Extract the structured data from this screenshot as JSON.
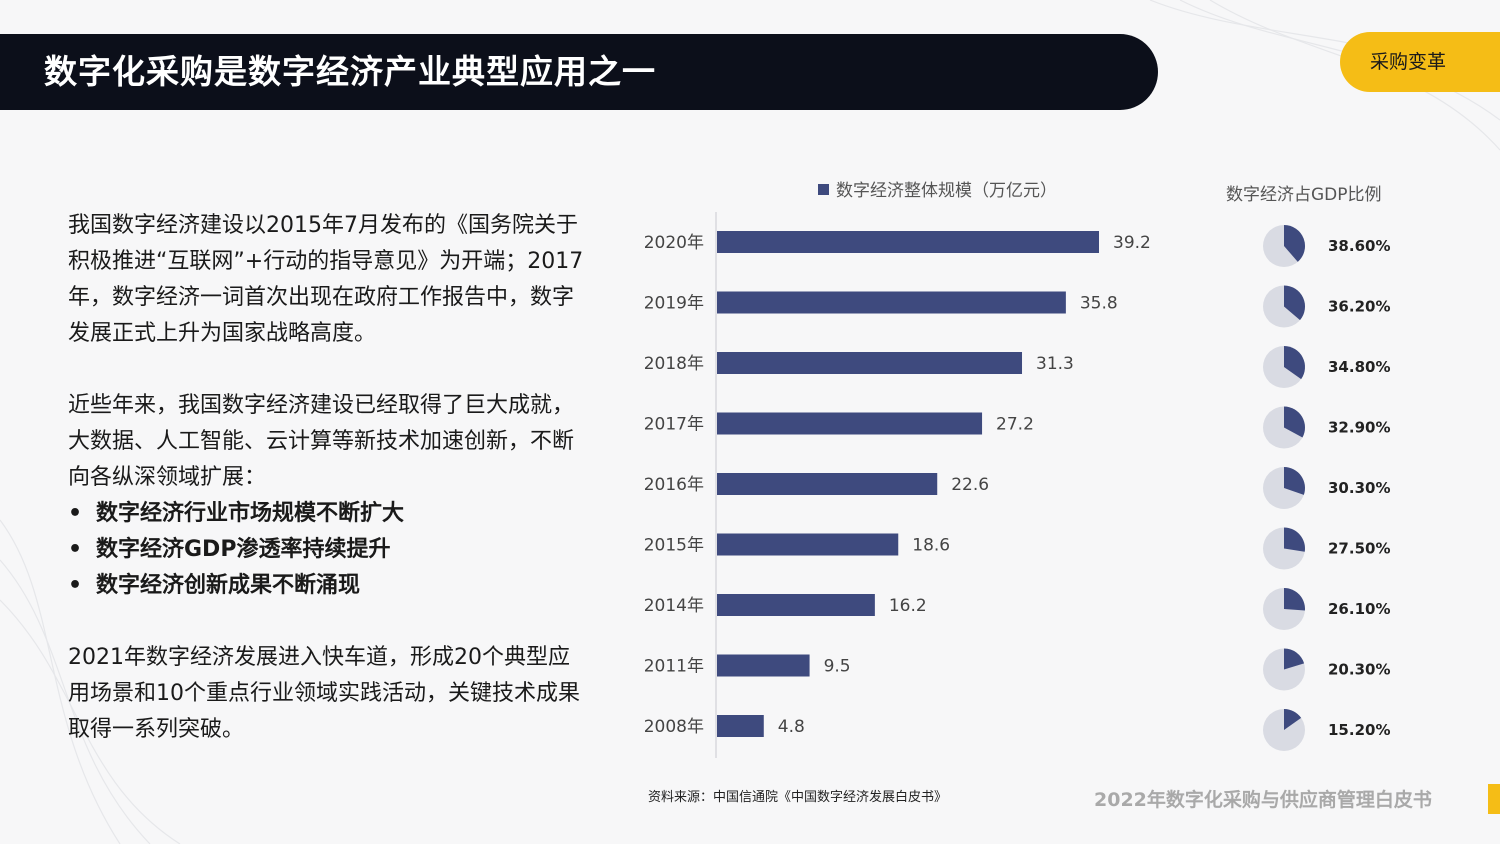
{
  "header": {
    "title": "数字化采购是数字经济产业典型应用之一",
    "tag": "采购变革"
  },
  "body": {
    "para1": "我国数字经济建设以2015年7月发布的《国务院关于积极推进“互联网”+行动的指导意见》为开端；2017年，数字经济一词首次出现在政府工作报告中，数字发展正式上升为国家战略高度。",
    "para2": "近些年来，我国数字经济建设已经取得了巨大成就，大数据、人工智能、云计算等新技术加速创新，不断向各纵深领域扩展：",
    "bullets": [
      "数字经济行业市场规模不断扩大",
      "数字经济GDP渗透率持续提升",
      "数字经济创新成果不断涌现"
    ],
    "para3": "2021年数字经济发展进入快车道，形成20个典型应用场景和10个重点行业领域实践活动，关键技术成果取得一系列突破。"
  },
  "chart_data": [
    {
      "type": "bar",
      "orientation": "horizontal",
      "legend": "数字经济整体规模（万亿元）",
      "categories": [
        "2020年",
        "2019年",
        "2018年",
        "2017年",
        "2016年",
        "2015年",
        "2014年",
        "2011年",
        "2008年"
      ],
      "values": [
        39.2,
        35.8,
        31.3,
        27.2,
        22.6,
        18.6,
        16.2,
        9.5,
        4.8
      ],
      "value_labels": [
        "39.2",
        "35.8",
        "31.3",
        "27.2",
        "22.6",
        "18.6",
        "16.2",
        "9.5",
        "4.8"
      ],
      "xlim": [
        0,
        45
      ],
      "bar_color": "#3e4a7e",
      "grid": false
    },
    {
      "type": "pie",
      "title": "数字经济占GDP比例",
      "categories": [
        "2020年",
        "2019年",
        "2018年",
        "2017年",
        "2016年",
        "2015年",
        "2014年",
        "2011年",
        "2008年"
      ],
      "values": [
        38.6,
        36.2,
        34.8,
        32.9,
        30.3,
        27.5,
        26.1,
        20.3,
        15.2
      ],
      "value_labels": [
        "38.60%",
        "36.20%",
        "34.80%",
        "32.90%",
        "30.30%",
        "27.50%",
        "26.10%",
        "20.30%",
        "15.20%"
      ],
      "slice_color": "#3e4a7e",
      "rest_color": "#d9dbe3"
    }
  ],
  "footer": {
    "source": "资料来源：中国信通院《中国数字经济发展白皮书》",
    "title": "2022年数字化采购与供应商管理白皮书",
    "accent_color": "#f5bd16"
  }
}
